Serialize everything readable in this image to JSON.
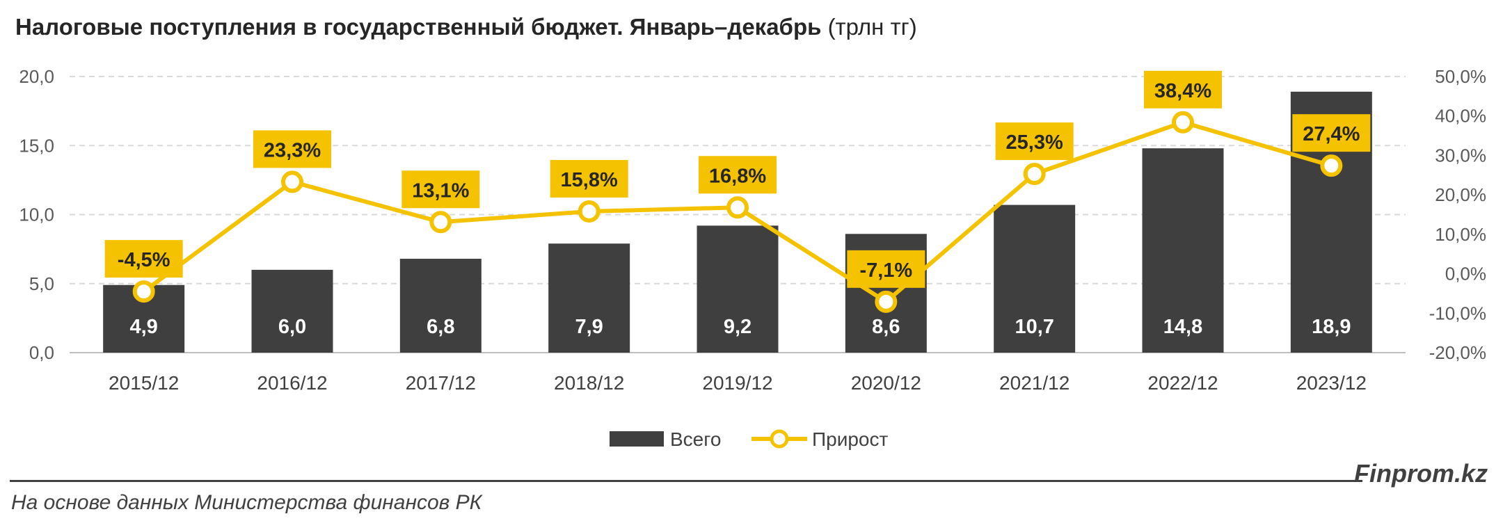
{
  "title": {
    "main": "Налоговые поступления в государственный бюджет. Январь–декабрь",
    "unit": "(трлн тг)"
  },
  "chart_data": {
    "type": "bar",
    "categories": [
      "2015/12",
      "2016/12",
      "2017/12",
      "2018/12",
      "2019/12",
      "2020/12",
      "2021/12",
      "2022/12",
      "2023/12"
    ],
    "series": [
      {
        "name": "Всего",
        "type": "bar",
        "axis": "left",
        "color": "#3f3f3f",
        "values": [
          4.9,
          6.0,
          6.8,
          7.9,
          9.2,
          8.6,
          10.7,
          14.8,
          18.9
        ],
        "labels": [
          "4,9",
          "6,0",
          "6,8",
          "7,9",
          "9,2",
          "8,6",
          "10,7",
          "14,8",
          "18,9"
        ]
      },
      {
        "name": "Прирост",
        "type": "line",
        "axis": "right",
        "color": "#f5c200",
        "values": [
          -4.5,
          23.3,
          13.1,
          15.8,
          16.8,
          -7.1,
          25.3,
          38.4,
          27.4
        ],
        "labels": [
          "-4,5%",
          "23,3%",
          "13,1%",
          "15,8%",
          "16,8%",
          "-7,1%",
          "25,3%",
          "38,4%",
          "27,4%"
        ]
      }
    ],
    "y_left": {
      "min": 0,
      "max": 20,
      "ticks": [
        "0,0",
        "5,0",
        "10,0",
        "15,0",
        "20,0"
      ]
    },
    "y_right": {
      "min": -20,
      "max": 50,
      "ticks": [
        "-20,0%",
        "-10,0%",
        "0,0%",
        "10,0%",
        "20,0%",
        "30,0%",
        "40,0%",
        "50,0%"
      ]
    },
    "grid": "dashed horizontal",
    "legend_position": "bottom"
  },
  "footer": {
    "brand": "Finprom.kz",
    "source": "На основе данных Министерства финансов РК"
  }
}
